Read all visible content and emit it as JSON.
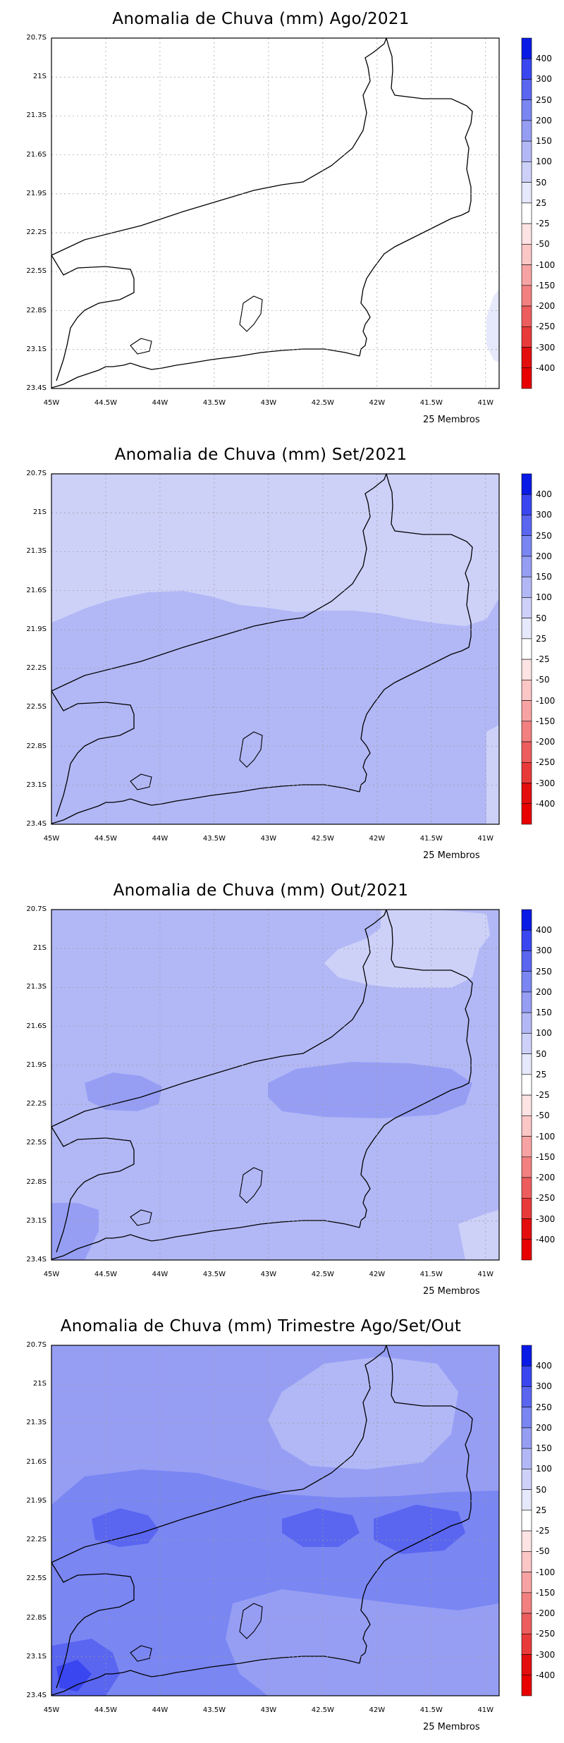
{
  "map_data": {
    "region": "Rio de Janeiro state",
    "lat_ticks": [
      "20.7S",
      "21S",
      "21.3S",
      "21.6S",
      "21.9S",
      "22.2S",
      "22.5S",
      "22.8S",
      "23.1S",
      "23.4S"
    ],
    "lon_ticks": [
      "45W",
      "44.5W",
      "44W",
      "43.5W",
      "43W",
      "42.5W",
      "42W",
      "41.5W",
      "41W"
    ],
    "colorbar_levels": [
      "400",
      "300",
      "250",
      "200",
      "150",
      "100",
      "50",
      "25",
      "-25",
      "-50",
      "-100",
      "-150",
      "-200",
      "-250",
      "-300",
      "-400"
    ],
    "colorbar_colors": [
      "#0a1ae6",
      "#3a46f0",
      "#5a66f0",
      "#7a86f2",
      "#969ef4",
      "#b2b8f6",
      "#cdd1f8",
      "#e6e8fb",
      "#ffffff",
      "#fde3e3",
      "#fbc6c6",
      "#f7a3a3",
      "#f38080",
      "#ee5d5d",
      "#e93a3a",
      "#e40e0e",
      "#e80000"
    ],
    "footer": "25 Membros",
    "panels": [
      {
        "title": "Anomalia de Chuva (mm) Ago/2021"
      },
      {
        "title": "Anomalia de Chuva (mm) Set/2021"
      },
      {
        "title": "Anomalia de Chuva (mm) Out/2021"
      },
      {
        "title": "Anomalia de Chuva (mm) Trimestre Ago/Set/Out"
      }
    ]
  }
}
